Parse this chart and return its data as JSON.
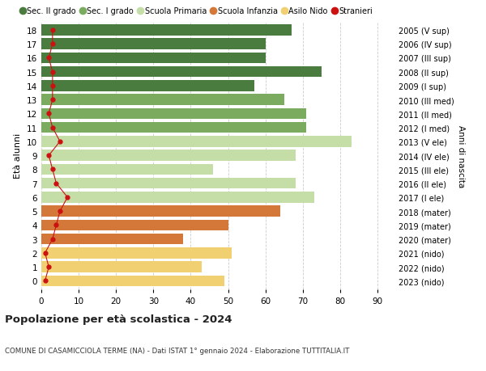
{
  "ages": [
    18,
    17,
    16,
    15,
    14,
    13,
    12,
    11,
    10,
    9,
    8,
    7,
    6,
    5,
    4,
    3,
    2,
    1,
    0
  ],
  "values": [
    67,
    60,
    60,
    75,
    57,
    65,
    71,
    71,
    83,
    68,
    46,
    68,
    73,
    64,
    50,
    38,
    51,
    43,
    49
  ],
  "stranieri": [
    3,
    3,
    2,
    3,
    3,
    3,
    2,
    3,
    5,
    2,
    3,
    4,
    7,
    5,
    4,
    3,
    1,
    2,
    1
  ],
  "right_labels": [
    "2005 (V sup)",
    "2006 (IV sup)",
    "2007 (III sup)",
    "2008 (II sup)",
    "2009 (I sup)",
    "2010 (III med)",
    "2011 (II med)",
    "2012 (I med)",
    "2013 (V ele)",
    "2014 (IV ele)",
    "2015 (III ele)",
    "2016 (II ele)",
    "2017 (I ele)",
    "2018 (mater)",
    "2019 (mater)",
    "2020 (mater)",
    "2021 (nido)",
    "2022 (nido)",
    "2023 (nido)"
  ],
  "bar_colors": [
    "#4a7c3f",
    "#4a7c3f",
    "#4a7c3f",
    "#4a7c3f",
    "#4a7c3f",
    "#7aab5e",
    "#7aab5e",
    "#7aab5e",
    "#c5dea8",
    "#c5dea8",
    "#c5dea8",
    "#c5dea8",
    "#c5dea8",
    "#d4783a",
    "#d4783a",
    "#d4783a",
    "#f0d070",
    "#f0d070",
    "#f0d070"
  ],
  "legend_labels": [
    "Sec. II grado",
    "Sec. I grado",
    "Scuola Primaria",
    "Scuola Infanzia",
    "Asilo Nido",
    "Stranieri"
  ],
  "legend_colors": [
    "#4a7c3f",
    "#7aab5e",
    "#c5dea8",
    "#d4783a",
    "#f0d070",
    "#cc1111"
  ],
  "ylabel": "Età alunni",
  "right_ylabel": "Anni di nascita",
  "title": "Popolazione per età scolastica - 2024",
  "subtitle": "COMUNE DI CASAMICCIOLA TERME (NA) - Dati ISTAT 1° gennaio 2024 - Elaborazione TUTTITALIA.IT",
  "xlim": [
    0,
    95
  ],
  "xticks": [
    0,
    10,
    20,
    30,
    40,
    50,
    60,
    70,
    80,
    90
  ],
  "stranieri_color": "#cc1111",
  "bar_height": 0.78,
  "background_color": "#ffffff",
  "grid_color": "#cccccc"
}
